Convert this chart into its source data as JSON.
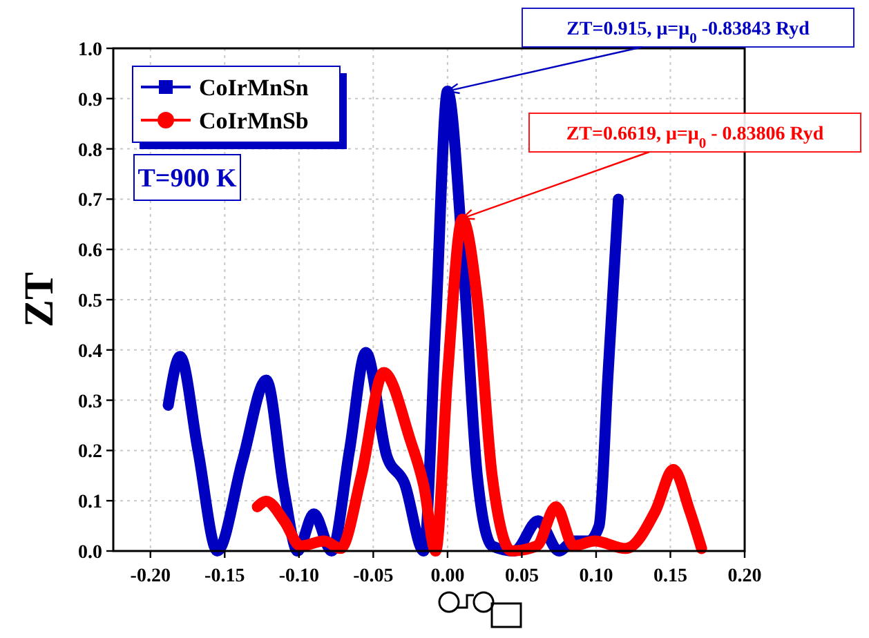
{
  "chart_data": {
    "type": "line",
    "ylabel": "ZT",
    "legend": "top left",
    "grid": true,
    "line_style": "solid",
    "xlim": [
      -0.225,
      0.2
    ],
    "ylim": [
      0,
      1
    ],
    "xticks": [
      {
        "value": -0.2,
        "label": "-0.20"
      },
      {
        "value": -0.15,
        "label": "-0.15"
      },
      {
        "value": -0.1,
        "label": "-0.10"
      },
      {
        "value": -0.05,
        "label": "-0.05"
      },
      {
        "value": 0,
        "label": "0.00"
      },
      {
        "value": 0.05,
        "label": "0.05"
      },
      {
        "value": 0.1,
        "label": "0.10"
      },
      {
        "value": 0.15,
        "label": "0.15"
      },
      {
        "value": 0.2,
        "label": "0.20"
      }
    ],
    "yticks": [
      {
        "value": 0,
        "label": "0.0"
      },
      0.1,
      0.2,
      0.3,
      0.4,
      0.5,
      0.6,
      0.7,
      0.8,
      0.9,
      {
        "value": 1,
        "label": "1.0"
      }
    ],
    "series": [
      {
        "name": "CoIrMnSn",
        "color": "#0000c0",
        "x": [
          -0.188,
          -0.18,
          -0.168,
          -0.155,
          -0.138,
          -0.122,
          -0.11,
          -0.101,
          -0.09,
          -0.078,
          -0.066,
          -0.055,
          -0.041,
          -0.029,
          -0.016,
          -0.008,
          0,
          0.01,
          0.02,
          0.03,
          0.045,
          0.061,
          0.075,
          0.085,
          0.095,
          0.102,
          0.108,
          0.115
        ],
        "values": [
          0.29,
          0.387,
          0.2,
          0,
          0.18,
          0.34,
          0.12,
          0,
          0.074,
          0,
          0.2,
          0.395,
          0.19,
          0.135,
          0,
          0.45,
          0.915,
          0.6,
          0.15,
          0.01,
          0,
          0.06,
          0,
          0.02,
          0.02,
          0.05,
          0.35,
          0.7
        ]
      },
      {
        "name": "CoIrMnSb",
        "color": "#ff0000",
        "x": [
          -0.128,
          -0.122,
          -0.11,
          -0.099,
          -0.083,
          -0.072,
          -0.058,
          -0.043,
          -0.025,
          -0.016,
          -0.008,
          0,
          0.01,
          0.02,
          0.03,
          0.043,
          0.06,
          0.073,
          0.085,
          0.099,
          0.12,
          0.14,
          0.152,
          0.163,
          0.171
        ],
        "values": [
          0.088,
          0.099,
          0.06,
          0.01,
          0.02,
          0.005,
          0.15,
          0.355,
          0.22,
          0.13,
          0,
          0.35,
          0.66,
          0.5,
          0.15,
          0,
          0.01,
          0.088,
          0.01,
          0.02,
          0.005,
          0.08,
          0.162,
          0.08,
          0.005
        ]
      }
    ],
    "annotations": [
      {
        "text": "ZT=0.915,  μ=μ$_{0}$ -0.83843 Ryd",
        "x": 0,
        "y": 0.915
      },
      {
        "text": "ZT=0.6619,  μ=μ$_{0}$ - 0.83806 Ryd",
        "x": 0.01,
        "y": 0.6619
      },
      "T=900 K"
    ]
  }
}
